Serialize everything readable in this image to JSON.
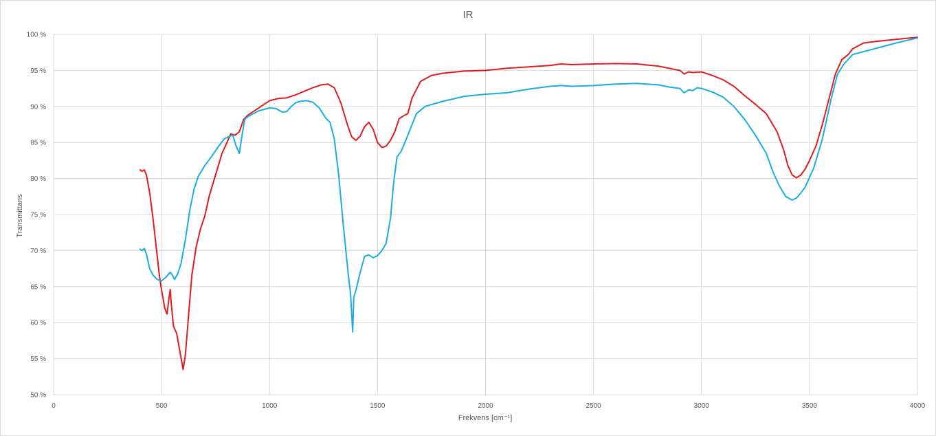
{
  "chart_data": {
    "type": "line",
    "title": "IR",
    "xlabel": "Frekvens [cm⁻¹]",
    "ylabel": "Transmittans",
    "xlim": [
      0,
      4000
    ],
    "ylim": [
      50,
      100
    ],
    "x_ticks": [
      "0",
      "500",
      "1000",
      "1500",
      "2000",
      "2500",
      "3000",
      "3500",
      "4000"
    ],
    "y_ticks": [
      "50 %",
      "55 %",
      "60 %",
      "65 %",
      "70 %",
      "75 %",
      "80 %",
      "85 %",
      "90 %",
      "95 %",
      "100 %"
    ],
    "grid": true,
    "legend": "none",
    "series": [
      {
        "color": "#e31a1c",
        "x": [
          400,
          410,
          420,
          430,
          445,
          460,
          475,
          490,
          500,
          515,
          525,
          535,
          540,
          545,
          555,
          570,
          585,
          600,
          610,
          625,
          640,
          660,
          680,
          700,
          720,
          740,
          760,
          780,
          800,
          820,
          840,
          860,
          880,
          900,
          950,
          1000,
          1040,
          1080,
          1120,
          1160,
          1200,
          1240,
          1270,
          1300,
          1330,
          1360,
          1380,
          1400,
          1420,
          1440,
          1460,
          1480,
          1500,
          1520,
          1540,
          1560,
          1580,
          1600,
          1620,
          1640,
          1660,
          1700,
          1750,
          1800,
          1900,
          2000,
          2100,
          2200,
          2300,
          2350,
          2400,
          2500,
          2600,
          2700,
          2800,
          2850,
          2900,
          2920,
          2940,
          2960,
          3000,
          3050,
          3100,
          3150,
          3200,
          3250,
          3300,
          3350,
          3380,
          3400,
          3420,
          3440,
          3460,
          3480,
          3500,
          3530,
          3560,
          3590,
          3620,
          3650,
          3680,
          3700,
          3750,
          3800,
          3900,
          4000
        ],
        "y": [
          81.2,
          81.0,
          81.2,
          80.5,
          78.0,
          74.5,
          70.5,
          66.5,
          64.5,
          62.0,
          61.2,
          63.5,
          64.6,
          62.5,
          59.5,
          58.5,
          56.0,
          53.5,
          55.5,
          61.0,
          66.5,
          70.5,
          73.0,
          74.8,
          77.5,
          79.5,
          81.5,
          83.5,
          84.8,
          86.2,
          86.0,
          86.5,
          88.2,
          88.8,
          89.8,
          90.8,
          91.1,
          91.2,
          91.6,
          92.1,
          92.6,
          93.0,
          93.1,
          92.6,
          90.5,
          87.5,
          85.8,
          85.3,
          85.9,
          87.2,
          87.8,
          86.8,
          85.0,
          84.3,
          84.5,
          85.3,
          86.5,
          88.3,
          88.7,
          89.0,
          91.2,
          93.5,
          94.3,
          94.6,
          94.9,
          95.0,
          95.3,
          95.5,
          95.7,
          95.9,
          95.8,
          95.9,
          95.95,
          95.9,
          95.6,
          95.3,
          95.0,
          94.5,
          94.8,
          94.7,
          94.8,
          94.3,
          93.7,
          92.8,
          91.5,
          90.3,
          89.0,
          86.5,
          84.0,
          81.8,
          80.5,
          80.1,
          80.5,
          81.3,
          82.5,
          84.5,
          87.5,
          91.0,
          94.5,
          96.5,
          97.2,
          98.0,
          98.8,
          99.0,
          99.3,
          99.6
        ]
      },
      {
        "color": "#18ade3",
        "x": [
          400,
          410,
          420,
          430,
          445,
          460,
          480,
          500,
          520,
          540,
          550,
          560,
          575,
          590,
          610,
          630,
          650,
          670,
          700,
          730,
          760,
          790,
          810,
          830,
          845,
          860,
          870,
          885,
          900,
          950,
          1000,
          1030,
          1060,
          1080,
          1100,
          1120,
          1140,
          1170,
          1200,
          1230,
          1260,
          1280,
          1300,
          1320,
          1340,
          1355,
          1365,
          1375,
          1385,
          1390,
          1400,
          1420,
          1440,
          1460,
          1480,
          1500,
          1520,
          1540,
          1560,
          1575,
          1590,
          1610,
          1640,
          1680,
          1720,
          1800,
          1900,
          2000,
          2100,
          2200,
          2300,
          2350,
          2400,
          2500,
          2600,
          2700,
          2800,
          2850,
          2900,
          2920,
          2940,
          2960,
          2980,
          3000,
          3050,
          3100,
          3150,
          3200,
          3250,
          3300,
          3330,
          3360,
          3390,
          3420,
          3440,
          3460,
          3480,
          3520,
          3560,
          3600,
          3630,
          3660,
          3700,
          3800,
          3900,
          4000
        ],
        "y": [
          70.2,
          70.0,
          70.3,
          69.5,
          67.5,
          66.6,
          66.0,
          65.8,
          66.3,
          67.0,
          66.6,
          66.0,
          66.8,
          68.2,
          71.5,
          75.5,
          78.5,
          80.3,
          81.8,
          83.0,
          84.3,
          85.5,
          85.8,
          86.0,
          84.5,
          83.5,
          85.5,
          88.2,
          88.6,
          89.4,
          89.8,
          89.7,
          89.2,
          89.3,
          90.0,
          90.5,
          90.7,
          90.8,
          90.6,
          89.8,
          88.4,
          87.8,
          85.5,
          80.5,
          74.0,
          69.5,
          66.5,
          64.0,
          58.7,
          63.5,
          64.5,
          67.0,
          69.2,
          69.4,
          69.0,
          69.3,
          70.0,
          71.0,
          74.5,
          79.5,
          83.0,
          83.8,
          86.0,
          89.0,
          90.0,
          90.7,
          91.4,
          91.7,
          91.9,
          92.4,
          92.8,
          92.9,
          92.8,
          92.9,
          93.1,
          93.2,
          93.0,
          92.7,
          92.5,
          91.9,
          92.3,
          92.2,
          92.6,
          92.5,
          92.0,
          91.3,
          90.0,
          88.2,
          86.0,
          83.5,
          81.0,
          79.0,
          77.5,
          77.0,
          77.3,
          78.0,
          78.8,
          81.5,
          85.5,
          91.0,
          94.5,
          95.9,
          97.2,
          98.0,
          98.8,
          99.5
        ]
      }
    ]
  }
}
